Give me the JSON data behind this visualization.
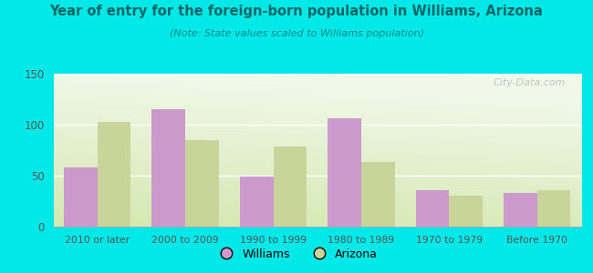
{
  "title": "Year of entry for the foreign-born population in Williams, Arizona",
  "subtitle": "(Note: State values scaled to Williams population)",
  "categories": [
    "2010 or later",
    "2000 to 2009",
    "1990 to 1999",
    "1980 to 1989",
    "1970 to 1979",
    "Before 1970"
  ],
  "williams_values": [
    58,
    115,
    49,
    106,
    36,
    33
  ],
  "arizona_values": [
    103,
    85,
    79,
    63,
    30,
    36
  ],
  "williams_color": "#cc99cc",
  "arizona_color": "#c8d49a",
  "background_color": "#00e8e8",
  "title_color": "#006666",
  "subtitle_color": "#008888",
  "tick_color": "#555555",
  "ylim": [
    0,
    150
  ],
  "yticks": [
    0,
    50,
    100,
    150
  ],
  "bar_width": 0.38,
  "legend_labels": [
    "Williams",
    "Arizona"
  ],
  "watermark": "City-Data.com"
}
